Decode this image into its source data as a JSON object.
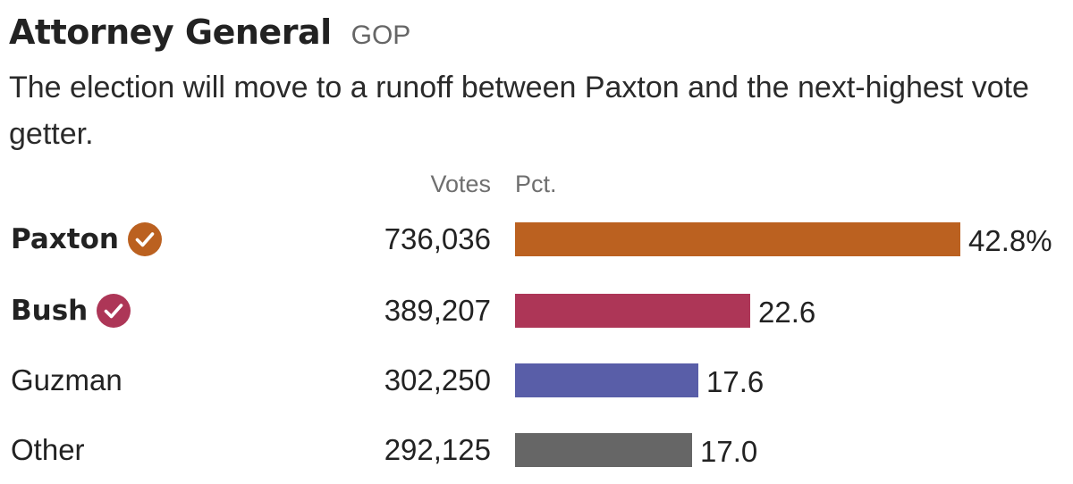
{
  "header": {
    "title": "Attorney General",
    "party": "GOP",
    "subtitle": "The election will move to a runoff between Paxton and the next-highest vote getter."
  },
  "columns": {
    "votes": "Votes",
    "pct": "Pct."
  },
  "colors": {
    "Paxton": "#bb6120",
    "Bush": "#ad3657",
    "Guzman": "#595ea8",
    "Other": "#666666"
  },
  "rows": [
    {
      "name": "Paxton",
      "votes": "736,036",
      "pct_label": "42.8%",
      "advancing": true,
      "check_icon": "check-circle-icon"
    },
    {
      "name": "Bush",
      "votes": "389,207",
      "pct_label": "22.6",
      "advancing": true,
      "check_icon": "check-circle-icon"
    },
    {
      "name": "Guzman",
      "votes": "302,250",
      "pct_label": "17.6",
      "advancing": false
    },
    {
      "name": "Other",
      "votes": "292,125",
      "pct_label": "17.0",
      "advancing": false
    }
  ],
  "chart_data": {
    "type": "bar",
    "orientation": "horizontal",
    "title": "Attorney General",
    "subtitle": "The election will move to a runoff between Paxton and the next-highest vote getter.",
    "categories": [
      "Paxton",
      "Bush",
      "Guzman",
      "Other"
    ],
    "series": [
      {
        "name": "Pct.",
        "values": [
          42.8,
          22.6,
          17.6,
          17.0
        ]
      },
      {
        "name": "Votes",
        "values": [
          736036,
          389207,
          302250,
          292125
        ]
      }
    ],
    "xlim": [
      0,
      42.8
    ],
    "grid": false
  }
}
